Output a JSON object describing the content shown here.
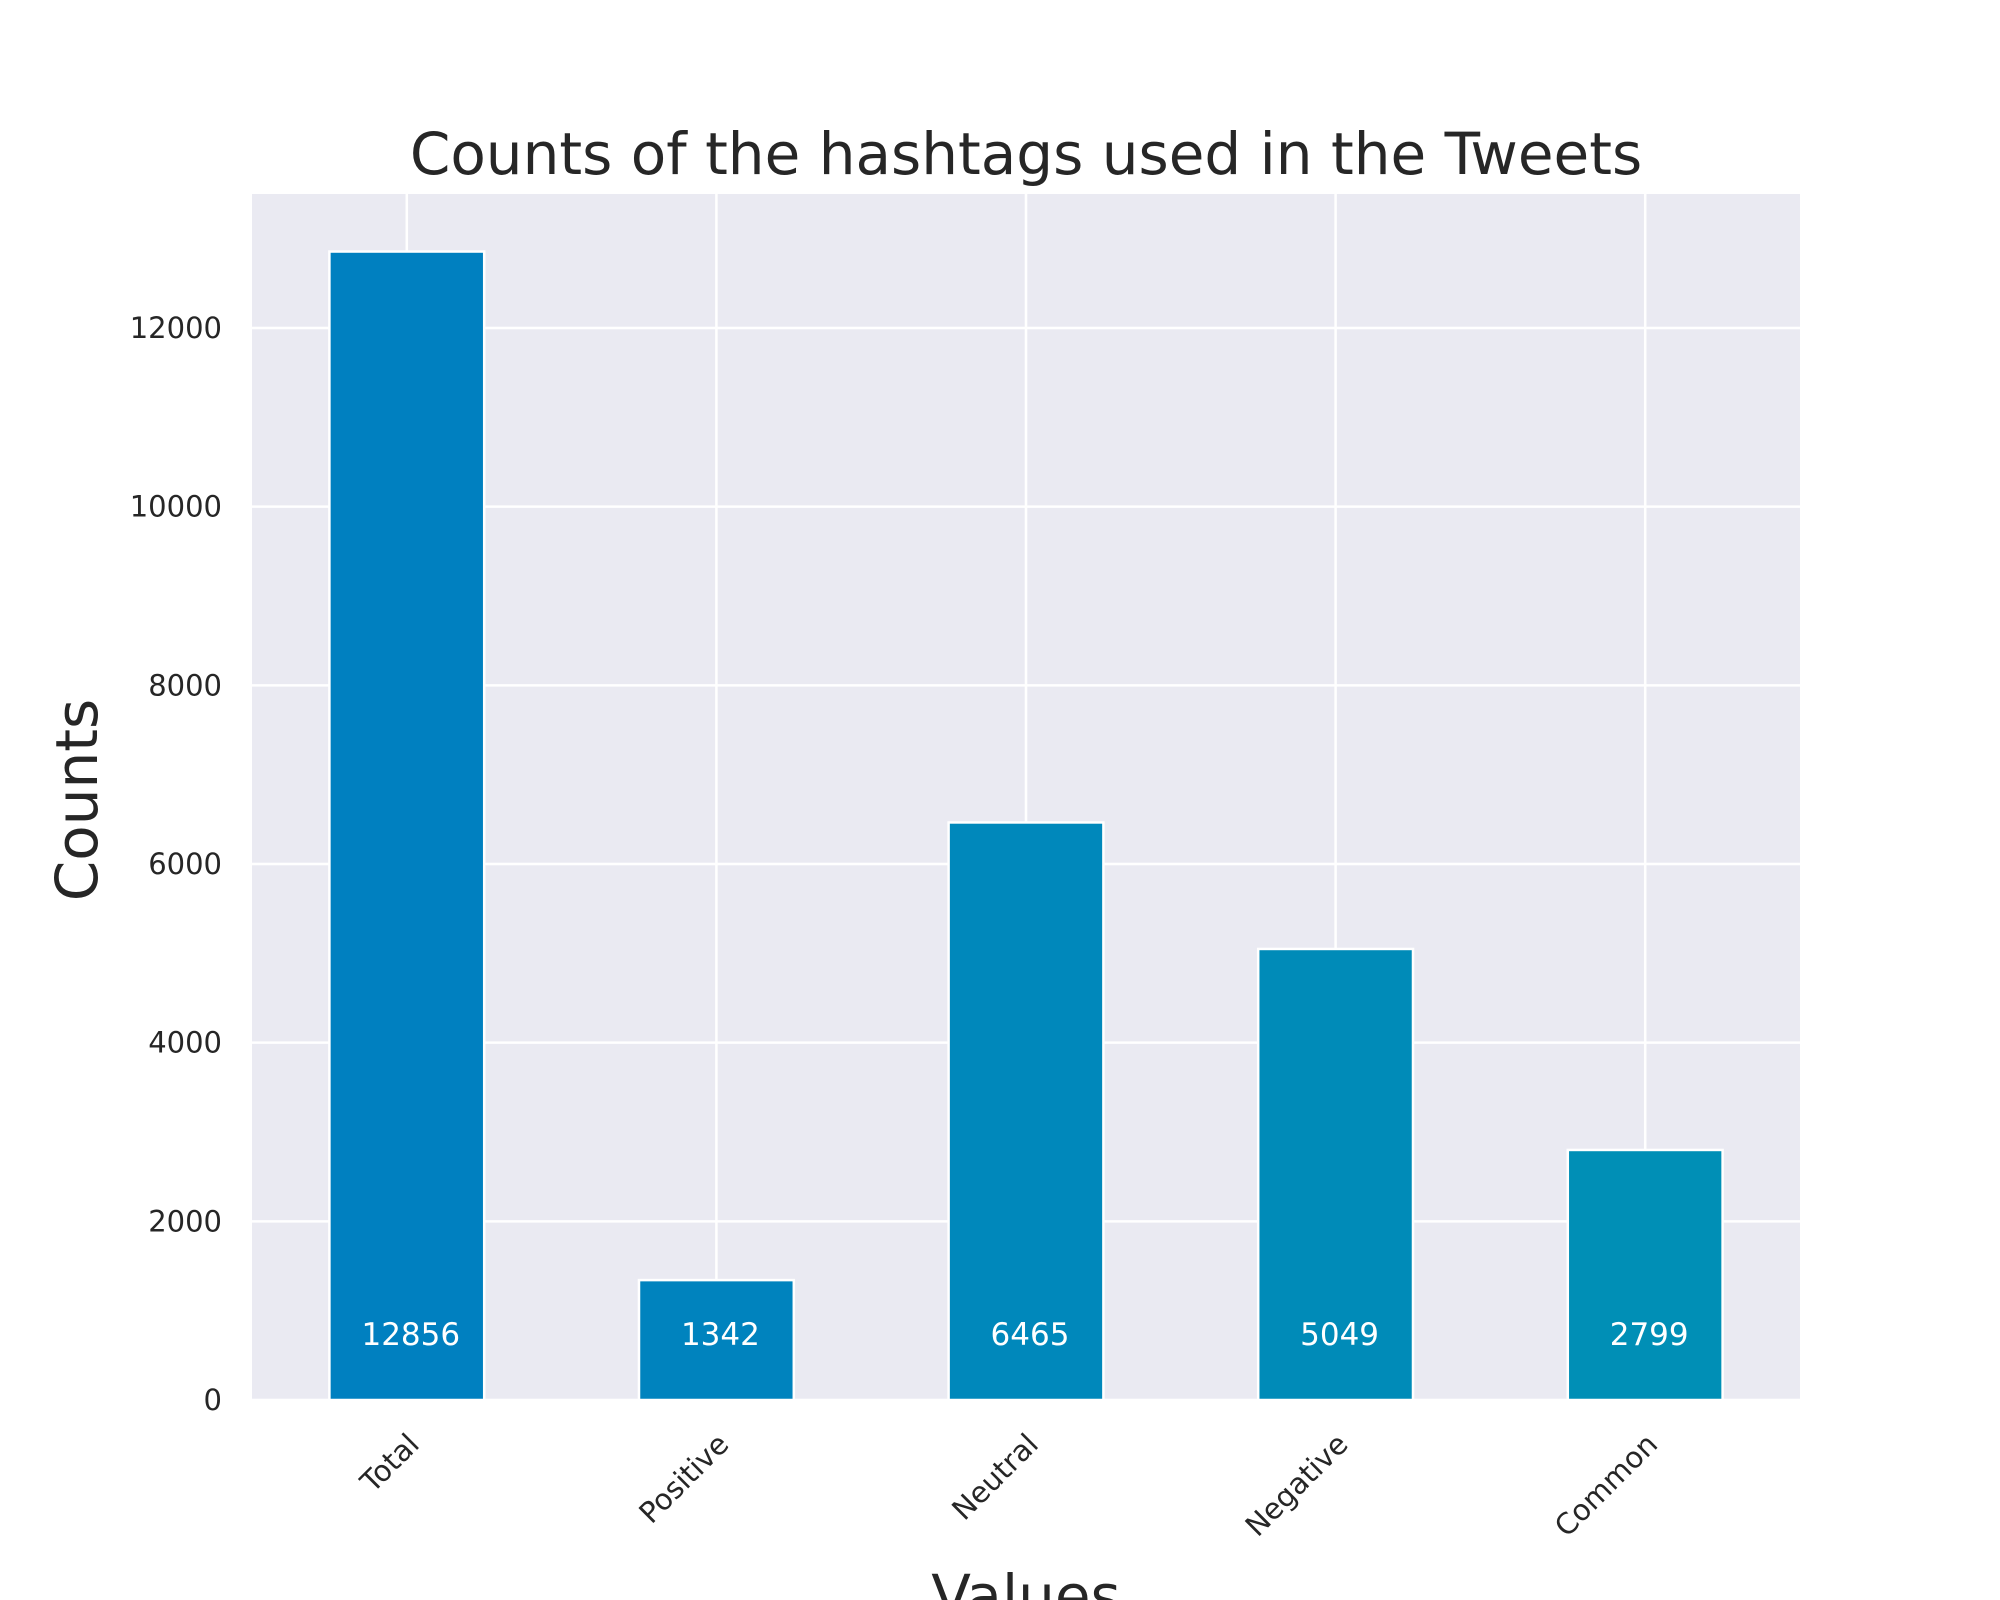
{
  "chart_data": {
    "type": "bar",
    "title": "Counts of the hashtags used in the Tweets",
    "xlabel": "Values",
    "ylabel": "Counts",
    "categories": [
      "Total",
      "Positive",
      "Neutral",
      "Negative",
      "Common"
    ],
    "values": [
      12856,
      1342,
      6465,
      5049,
      2799
    ],
    "data_labels": [
      "12856",
      "1342",
      "6465",
      "5049",
      "2799"
    ],
    "ylim": [
      0,
      13500
    ],
    "yticks": [
      0,
      2000,
      4000,
      6000,
      8000,
      10000,
      12000
    ],
    "ytick_labels": [
      "0",
      "2000",
      "4000",
      "6000",
      "8000",
      "10000",
      "12000"
    ],
    "grid": true,
    "colors": {
      "plot_background": "#EAEAF2",
      "gridline": "#FFFFFF",
      "bars": [
        "#0080C0",
        "#0083BE",
        "#0088BB",
        "#008BB8",
        "#008FB6"
      ],
      "data_label_text": "#FFFFFF",
      "text": "#262626"
    }
  }
}
